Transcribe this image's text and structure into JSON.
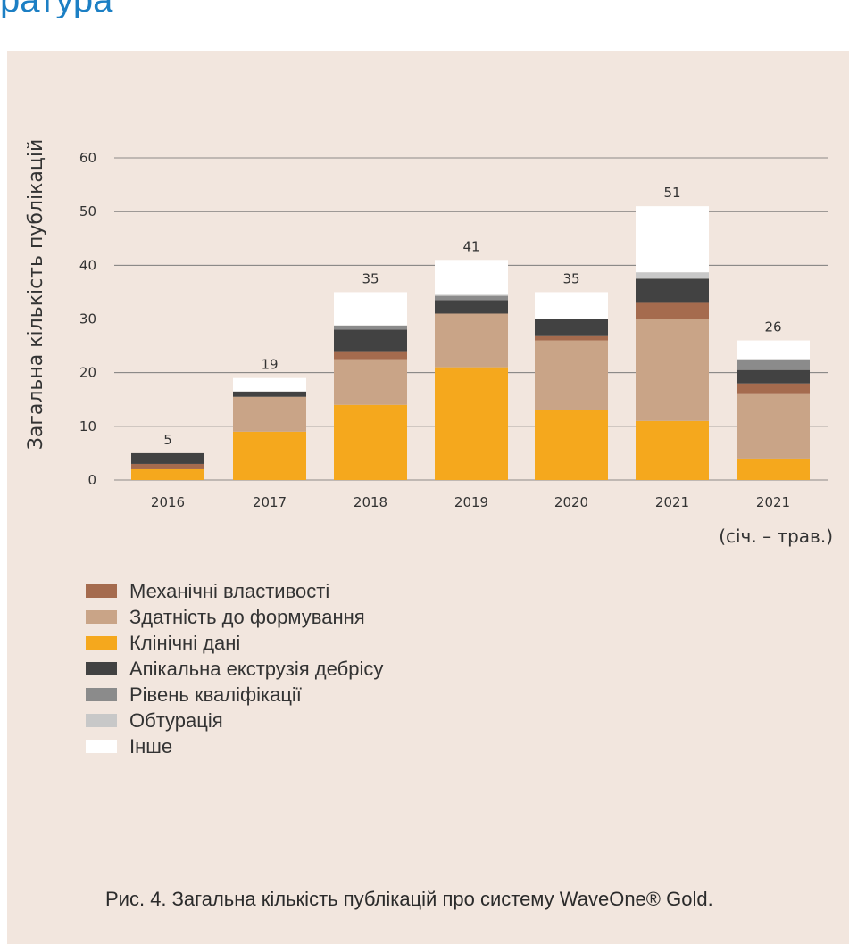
{
  "header_fragment": "ратура",
  "caption": "Рис. 4. Загальна кількість публікацій про систему WaveOne® Gold.",
  "chart_data": {
    "type": "bar",
    "stacked": true,
    "ylabel": "Загальна кількість публікацій",
    "ylim": [
      0,
      60
    ],
    "yticks": [
      0,
      10,
      20,
      30,
      40,
      50,
      60
    ],
    "grid": true,
    "legend_position": "bottom-left",
    "categories": [
      "2016",
      "2017",
      "2018",
      "2019",
      "2020",
      "2021",
      "2021"
    ],
    "category_sublabels": [
      "",
      "",
      "",
      "",
      "",
      "",
      "(січ. – трав.)"
    ],
    "totals": [
      5,
      19,
      35,
      41,
      35,
      51,
      26
    ],
    "series": [
      {
        "name": "Клінічні дані",
        "color": "#f5a81d",
        "values": [
          2,
          9,
          14,
          21,
          13,
          11,
          4
        ]
      },
      {
        "name": "Здатність до формування",
        "color": "#c9a487",
        "values": [
          0,
          6.5,
          8.5,
          10,
          13,
          19,
          12
        ]
      },
      {
        "name": "Механічні властивості",
        "color": "#a56b4e",
        "values": [
          1,
          0,
          1.5,
          0,
          0.8,
          3,
          2
        ]
      },
      {
        "name": "Апікальна екструзія дебрісу",
        "color": "#424242",
        "values": [
          2,
          1,
          4,
          2.5,
          3.2,
          4.5,
          2.5
        ]
      },
      {
        "name": "Рівень кваліфікації",
        "color": "#8b8b8b",
        "values": [
          0,
          0,
          0.8,
          0.8,
          0,
          0,
          2
        ]
      },
      {
        "name": "Обтурація",
        "color": "#c8c8c8",
        "values": [
          0,
          0,
          0,
          0.2,
          0,
          1.2,
          0
        ]
      },
      {
        "name": "Інше",
        "color": "#ffffff",
        "values": [
          0,
          2.5,
          6.2,
          6.5,
          5,
          12.3,
          3.5
        ]
      }
    ],
    "legend_order": [
      "Механічні властивості",
      "Здатність до формування",
      "Клінічні дані",
      "Апікальна екструзія дебрісу",
      "Рівень кваліфікації",
      "Обтурація",
      "Інше"
    ]
  }
}
